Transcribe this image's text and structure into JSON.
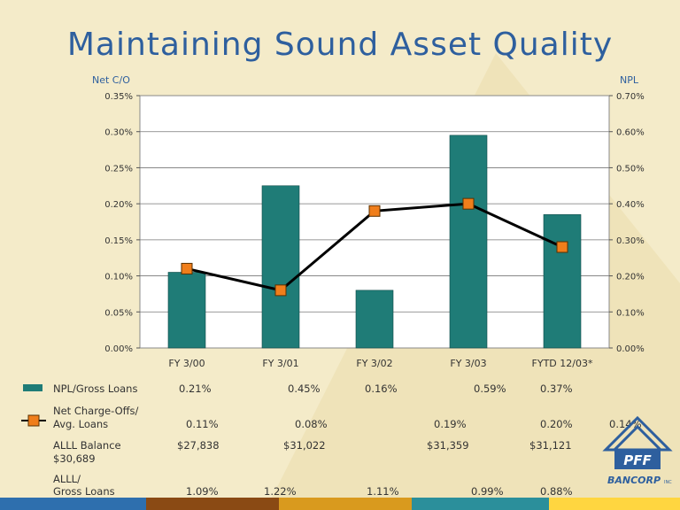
{
  "title": "Maintaining Sound Asset Quality",
  "colors": {
    "bars": "#1f7c77",
    "line": "#000000",
    "marker": "#f07e1b",
    "title": "#2e5f9e"
  },
  "chart_data": {
    "type": "bar+line",
    "categories": [
      "FY 3/00",
      "FY 3/01",
      "FY 3/02",
      "FY 3/03",
      "FYTD 12/03*"
    ],
    "left_axis_title": "Net C/O",
    "right_axis_title": "NPL",
    "left_ylim": [
      0,
      0.35
    ],
    "right_ylim": [
      0,
      0.7
    ],
    "left_ticks": [
      "0.00%",
      "0.05%",
      "0.10%",
      "0.15%",
      "0.20%",
      "0.25%",
      "0.30%",
      "0.35%"
    ],
    "right_ticks": [
      "0.00%",
      "0.10%",
      "0.20%",
      "0.30%",
      "0.40%",
      "0.50%",
      "0.60%",
      "0.70%"
    ],
    "series": [
      {
        "name": "NPL/Gross Loans",
        "type": "bar",
        "axis": "right",
        "values": [
          0.21,
          0.45,
          0.16,
          0.59,
          0.37
        ]
      },
      {
        "name": "Net Charge-Offs/ Avg. Loans",
        "type": "line",
        "axis": "left",
        "values": [
          0.11,
          0.08,
          0.19,
          0.2,
          0.14
        ]
      }
    ],
    "grid": true
  },
  "table": {
    "npl": {
      "label": "NPL/Gross Loans",
      "values": [
        "0.21%",
        "0.45%",
        "0.16%",
        "0.59%",
        "0.37%"
      ]
    },
    "nco": {
      "label_1": "Net Charge-Offs/",
      "label_2": "Avg. Loans",
      "values": [
        "0.11%",
        "0.08%",
        "0.19%",
        "0.20%",
        "0.14%"
      ]
    },
    "alll": {
      "label": "ALLL Balance",
      "values": [
        "$27,838",
        "$31,022",
        "$31,359",
        "$31,121"
      ],
      "wrap_value": "$30,689"
    },
    "alll_ratio": {
      "label_1": "ALLL/",
      "label_2": "Gross Loans",
      "values": [
        "1.09%",
        "1.22%",
        "1.11%",
        "0.99%",
        "0.88%"
      ]
    }
  },
  "logo": {
    "brand": "PFF",
    "sub": "BANCORP",
    "suffix": "INC"
  }
}
